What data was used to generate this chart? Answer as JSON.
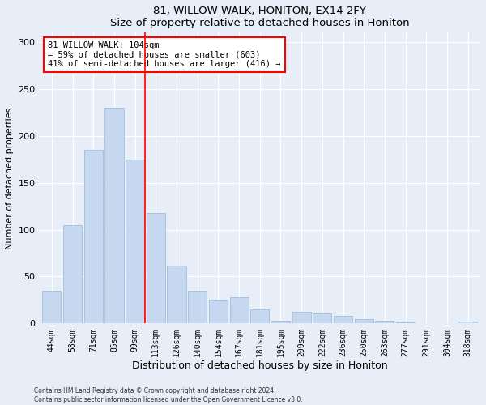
{
  "title1": "81, WILLOW WALK, HONITON, EX14 2FY",
  "title2": "Size of property relative to detached houses in Honiton",
  "xlabel": "Distribution of detached houses by size in Honiton",
  "ylabel": "Number of detached properties",
  "categories": [
    "44sqm",
    "58sqm",
    "71sqm",
    "85sqm",
    "99sqm",
    "113sqm",
    "126sqm",
    "140sqm",
    "154sqm",
    "167sqm",
    "181sqm",
    "195sqm",
    "209sqm",
    "222sqm",
    "236sqm",
    "250sqm",
    "263sqm",
    "277sqm",
    "291sqm",
    "304sqm",
    "318sqm"
  ],
  "values": [
    35,
    105,
    185,
    230,
    175,
    118,
    62,
    35,
    25,
    28,
    15,
    3,
    12,
    11,
    8,
    5,
    3,
    1,
    0,
    0,
    2
  ],
  "bar_color": "#c5d8f0",
  "bar_edge_color": "#a0bedd",
  "vline_color": "red",
  "annotation_text": "81 WILLOW WALK: 104sqm\n← 59% of detached houses are smaller (603)\n41% of semi-detached houses are larger (416) →",
  "annotation_box_color": "white",
  "annotation_box_edge_color": "red",
  "ylim": [
    0,
    310
  ],
  "yticks": [
    0,
    50,
    100,
    150,
    200,
    250,
    300
  ],
  "footer1": "Contains HM Land Registry data © Crown copyright and database right 2024.",
  "footer2": "Contains public sector information licensed under the Open Government Licence v3.0.",
  "bg_color": "#e8eef8",
  "plot_bg_color": "#e8eef8"
}
